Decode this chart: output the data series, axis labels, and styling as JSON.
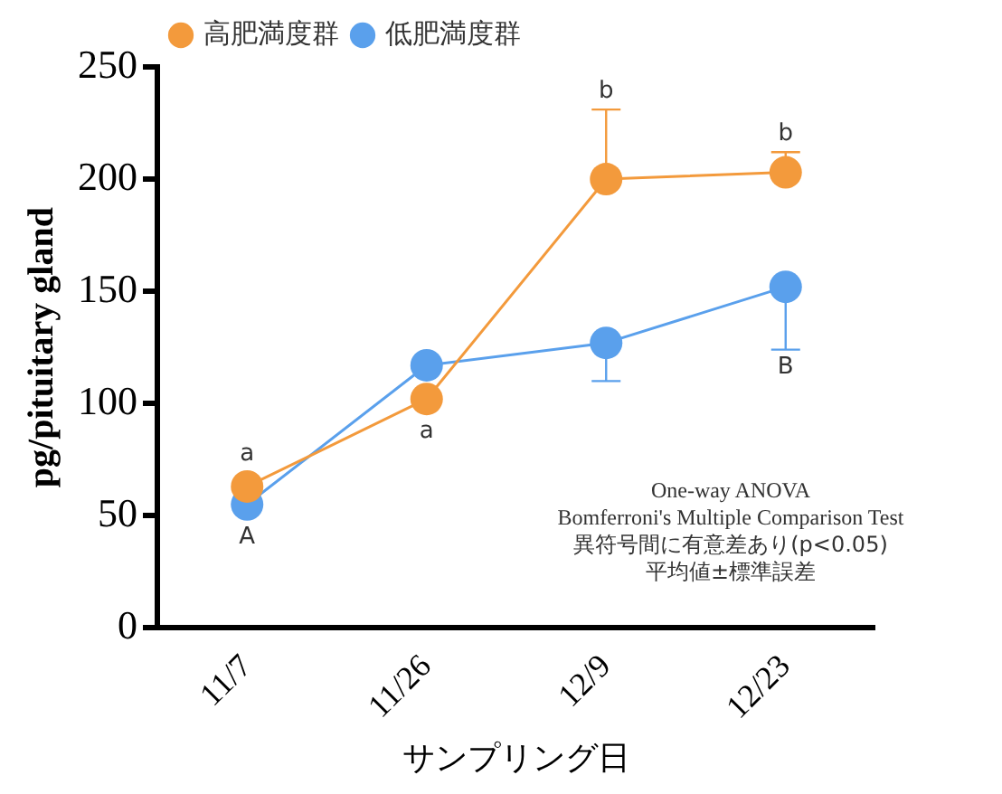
{
  "chart_data": {
    "type": "line",
    "ylabel": "pg/pituitary gland",
    "xlabel": "サンプリング日",
    "categories": [
      "11/7",
      "11/26",
      "12/9",
      "12/23"
    ],
    "series": [
      {
        "name": "高肥満度群",
        "color": "#f39a3c",
        "values": [
          63,
          102,
          200,
          203
        ],
        "errors": [
          null,
          null,
          [
            200,
            231
          ],
          [
            203,
            212
          ]
        ]
      },
      {
        "name": "低肥満度群",
        "color": "#5aa0ec",
        "values": [
          55,
          117,
          127,
          152
        ],
        "errors": [
          null,
          null,
          [
            110,
            127
          ],
          [
            124,
            152
          ]
        ]
      }
    ],
    "ylim": [
      0,
      250
    ],
    "yticks": [
      0,
      50,
      100,
      150,
      200,
      250
    ],
    "grid": false,
    "legend": "top left",
    "marker": "circle",
    "line_style": "solid",
    "annotations": [
      {
        "text": "a",
        "x": "11/7",
        "y": 63
      },
      {
        "text": "a",
        "x": "11/26",
        "y": 102
      },
      {
        "text": "A",
        "x": "11/7",
        "y": 55
      },
      {
        "text": "b",
        "x": "12/9",
        "y": 231
      },
      {
        "text": "b",
        "x": "12/23",
        "y": 212
      },
      {
        "text": "B",
        "x": "12/23",
        "y": 124
      },
      "One-way ANOVA",
      "Bomferroni's Multiple Comparison Test",
      "異符号間に有意差あり(p<0.05)",
      "平均値±標準誤差"
    ]
  }
}
